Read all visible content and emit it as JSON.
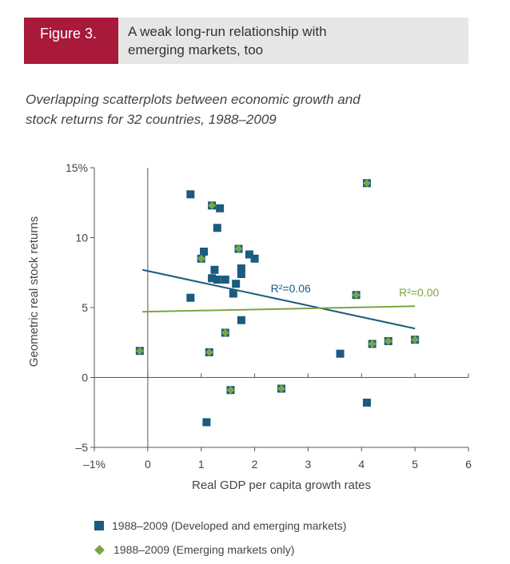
{
  "header": {
    "figure_label": "Figure 3.",
    "title_line1": "A weak long-run relationship with",
    "title_line2": "emerging markets, too"
  },
  "subtitle": {
    "line1": "Overlapping scatterplots between economic growth and",
    "line2": "stock returns for 32 countries, 1988–2009"
  },
  "colors": {
    "accent": "#a8193a",
    "header_bg": "#e6e6e7",
    "developed": "#1a5b7f",
    "emerging": "#7ba542"
  },
  "chart_data": {
    "type": "scatter",
    "xlabel": "Real GDP per capita growth rates",
    "ylabel": "Geometric real stock returns",
    "xlim": [
      -1,
      6
    ],
    "ylim": [
      -5,
      15
    ],
    "x_ticks": [
      -1,
      0,
      1,
      2,
      3,
      4,
      5,
      6
    ],
    "x_tick_labels": [
      "–1%",
      "0",
      "1",
      "2",
      "3",
      "4",
      "5",
      "6"
    ],
    "y_ticks": [
      -5,
      0,
      5,
      10,
      15
    ],
    "y_tick_labels": [
      "–5",
      "0",
      "5",
      "10",
      "15%"
    ],
    "series": [
      {
        "name": "1988–2009 (Developed and emerging markets)",
        "marker": "square",
        "points": [
          [
            0.8,
            13.1
          ],
          [
            1.35,
            12.1
          ],
          [
            1.3,
            10.7
          ],
          [
            1.05,
            9.0
          ],
          [
            1.9,
            8.8
          ],
          [
            2.0,
            8.5
          ],
          [
            1.75,
            7.8
          ],
          [
            1.25,
            7.7
          ],
          [
            1.75,
            7.4
          ],
          [
            1.2,
            7.1
          ],
          [
            1.3,
            7.0
          ],
          [
            1.45,
            7.0
          ],
          [
            1.65,
            6.7
          ],
          [
            1.6,
            6.0
          ],
          [
            0.8,
            5.7
          ],
          [
            1.75,
            4.1
          ],
          [
            3.6,
            1.7
          ],
          [
            1.1,
            -3.2
          ],
          [
            4.1,
            -1.8
          ]
        ]
      },
      {
        "name": "1988–2009 (Emerging markets only)",
        "marker": "diamond",
        "points": [
          [
            1.2,
            12.3
          ],
          [
            4.1,
            13.9
          ],
          [
            1.0,
            8.5
          ],
          [
            1.7,
            9.2
          ],
          [
            3.9,
            5.9
          ],
          [
            1.45,
            3.2
          ],
          [
            -0.15,
            1.9
          ],
          [
            1.15,
            1.8
          ],
          [
            4.2,
            2.4
          ],
          [
            4.5,
            2.6
          ],
          [
            5.0,
            2.7
          ],
          [
            1.55,
            -0.9
          ],
          [
            2.5,
            -0.8
          ]
        ]
      }
    ],
    "trendlines": [
      {
        "series": 0,
        "x": [
          -0.1,
          5.0
        ],
        "y": [
          7.7,
          3.5
        ],
        "label": "R²=0.06",
        "label_at": [
          2.3,
          6.1
        ]
      },
      {
        "series": 1,
        "x": [
          -0.1,
          5.0
        ],
        "y": [
          4.7,
          5.1
        ],
        "label": "R²=0.00",
        "label_at": [
          4.7,
          5.8
        ]
      }
    ]
  },
  "legend": [
    {
      "label": "1988–2009 (Developed and emerging markets)"
    },
    {
      "label": "1988–2009 (Emerging markets only)"
    }
  ]
}
